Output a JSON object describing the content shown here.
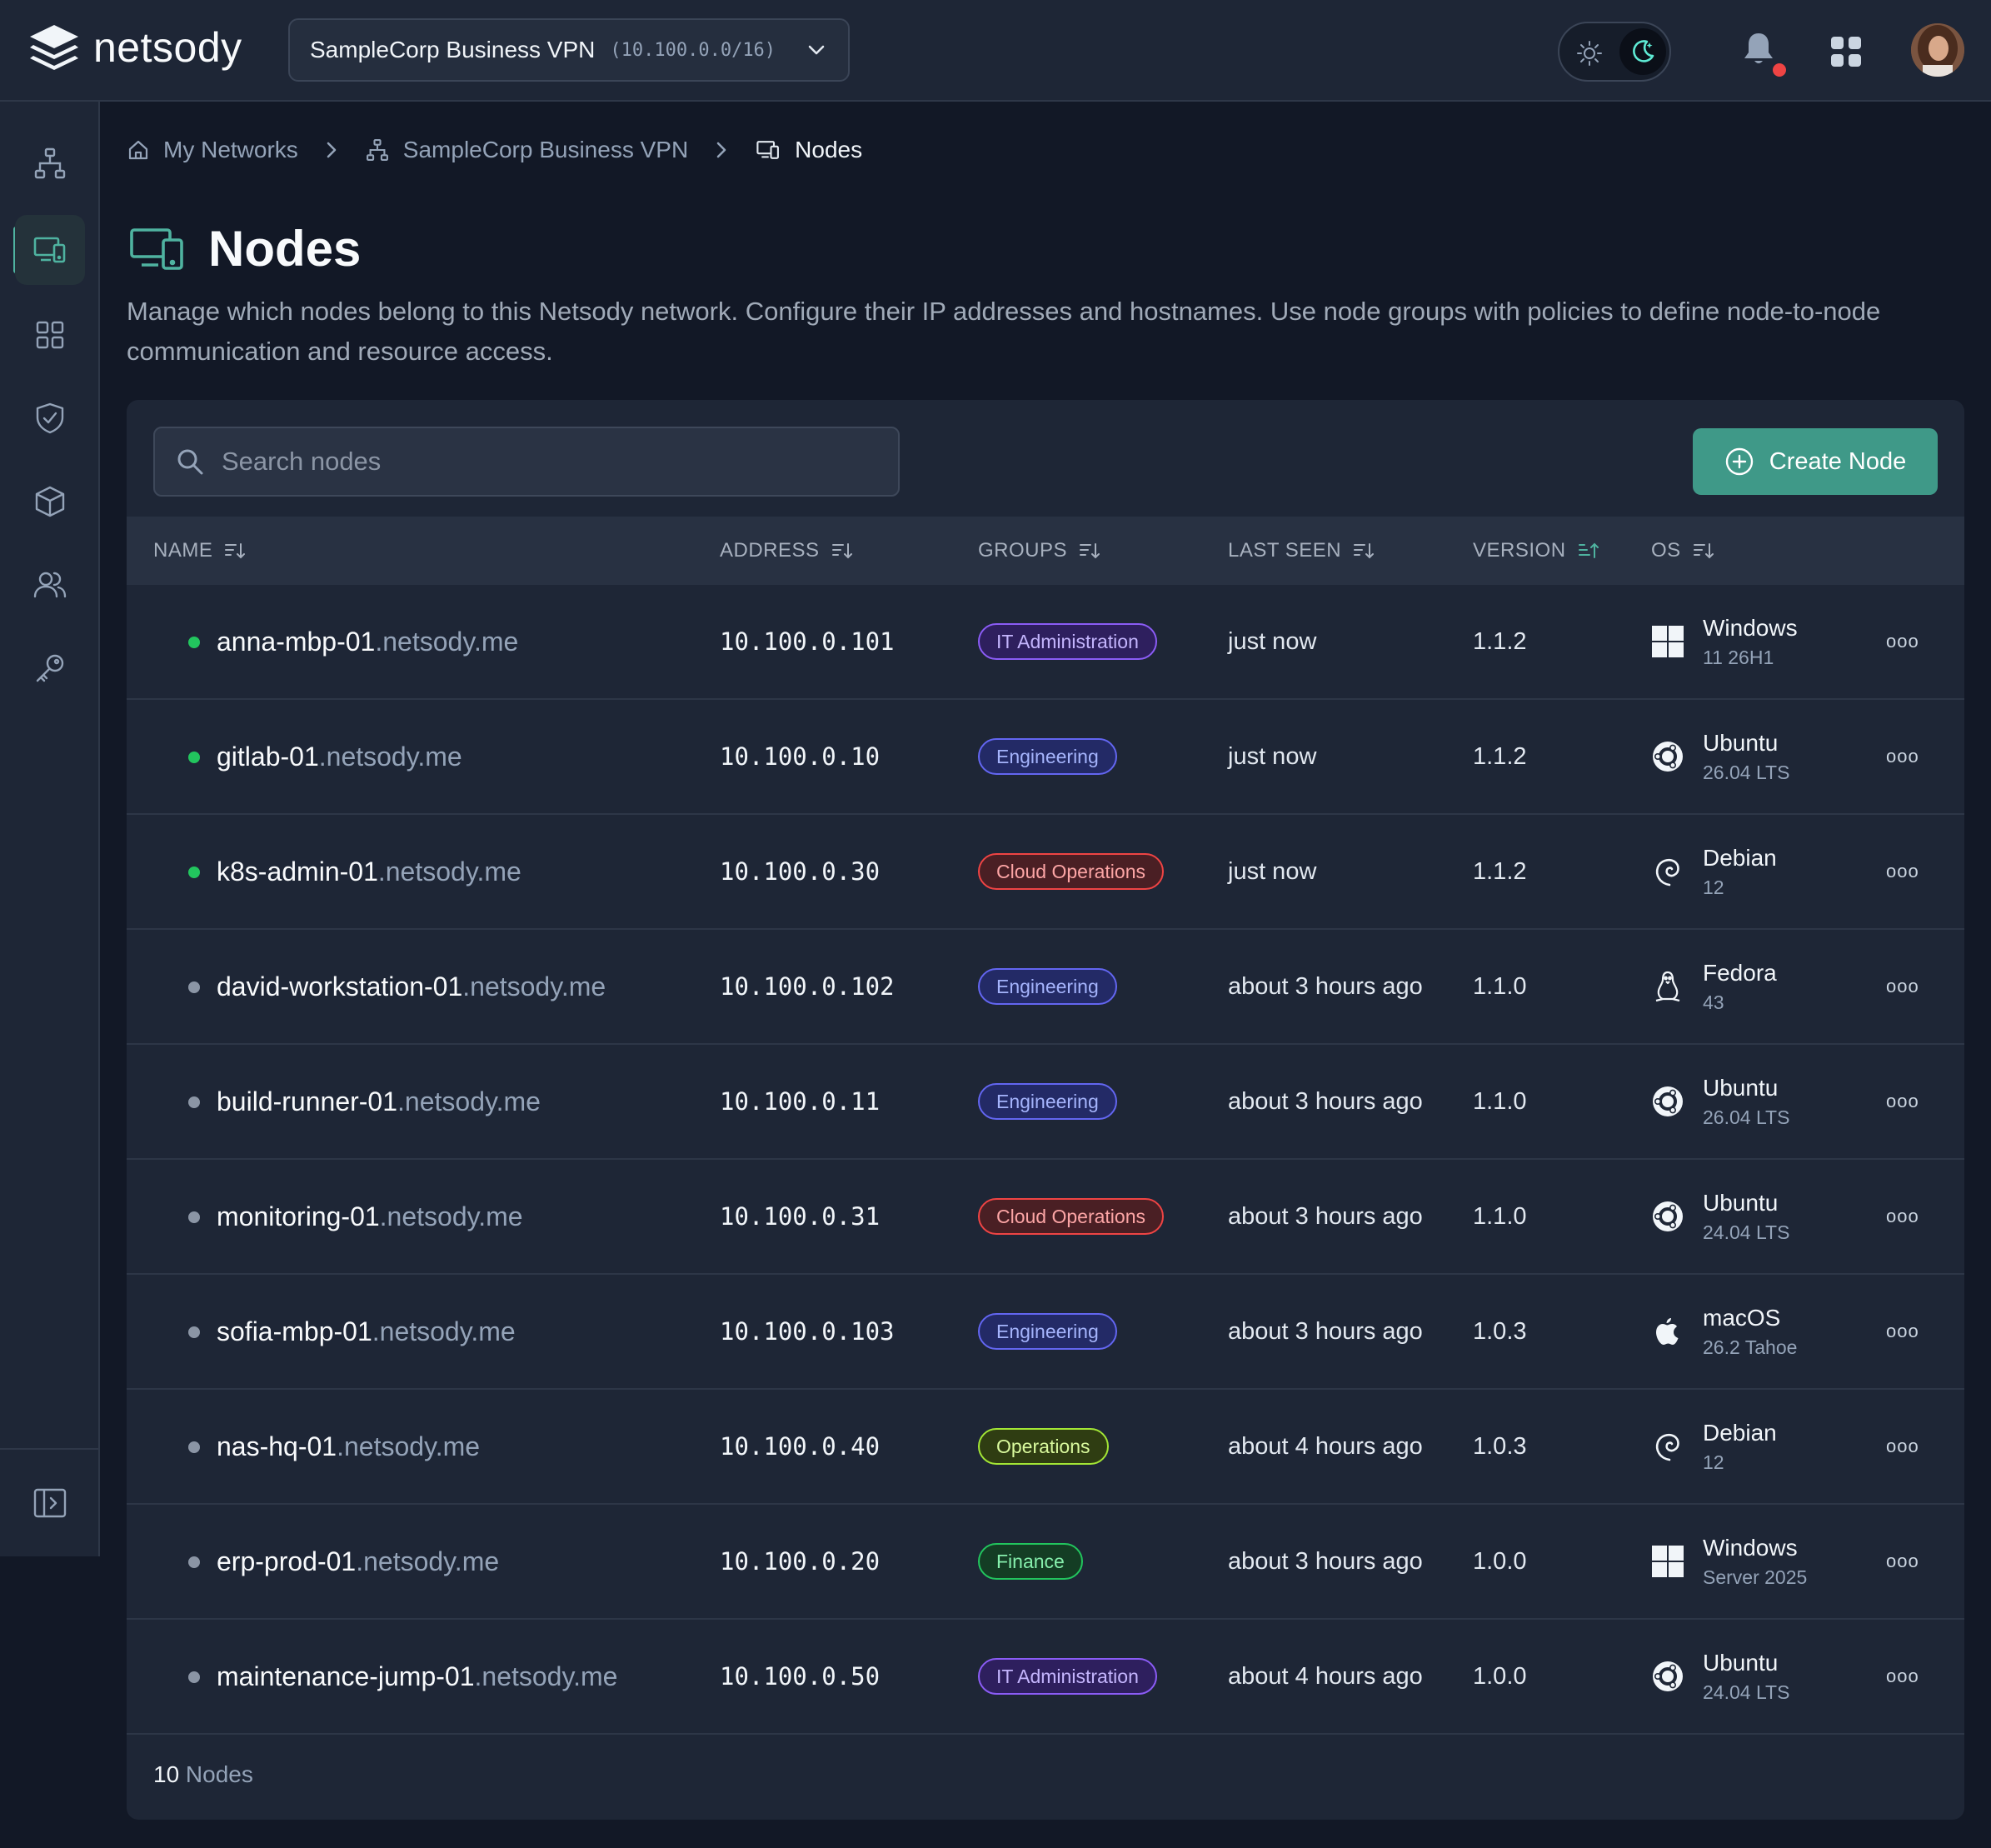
{
  "app": {
    "brand": "netsody"
  },
  "network_selector": {
    "name": "SampleCorp Business VPN",
    "cidr": "(10.100.0.0/16)"
  },
  "breadcrumb": {
    "home": "My Networks",
    "network": "SampleCorp Business VPN",
    "current": "Nodes"
  },
  "page": {
    "title": "Nodes",
    "description": "Manage which nodes belong to this Netsody network. Configure their IP addresses and hostnames. Use node groups with policies to define node-to-node communication and resource access."
  },
  "toolbar": {
    "search_placeholder": "Search nodes",
    "create_label": "Create Node"
  },
  "columns": {
    "name": "NAME",
    "address": "ADDRESS",
    "groups": "GROUPS",
    "last_seen": "LAST SEEN",
    "version": "VERSION",
    "os": "OS"
  },
  "colors": {
    "accent": "#3f9988",
    "online": "#22c55e",
    "offline": "#8b95a5"
  },
  "group_styles": {
    "IT Administration": {
      "color": "#c4b5fd",
      "border": "#8b5cf6",
      "bg": "#2e1f5e"
    },
    "Engineering": {
      "color": "#a5b4fc",
      "border": "#6366f1",
      "bg": "#232a66"
    },
    "Cloud Operations": {
      "color": "#fca5a5",
      "border": "#ef4444",
      "bg": "#4a1f24"
    },
    "Operations": {
      "color": "#d9f99d",
      "border": "#a3e635",
      "bg": "#2f3d12"
    },
    "Finance": {
      "color": "#86efac",
      "border": "#22c55e",
      "bg": "#143d24"
    }
  },
  "nodes": [
    {
      "host": "anna-mbp-01",
      "domain": ".netsody.me",
      "online": true,
      "address": "10.100.0.101",
      "group": "IT Administration",
      "last_seen": "just now",
      "version": "1.1.2",
      "os_icon": "windows-icon",
      "os_name": "Windows",
      "os_version": "11 26H1"
    },
    {
      "host": "gitlab-01",
      "domain": ".netsody.me",
      "online": true,
      "address": "10.100.0.10",
      "group": "Engineering",
      "last_seen": "just now",
      "version": "1.1.2",
      "os_icon": "ubuntu-icon",
      "os_name": "Ubuntu",
      "os_version": "26.04 LTS"
    },
    {
      "host": "k8s-admin-01",
      "domain": ".netsody.me",
      "online": true,
      "address": "10.100.0.30",
      "group": "Cloud Operations",
      "last_seen": "just now",
      "version": "1.1.2",
      "os_icon": "debian-icon",
      "os_name": "Debian",
      "os_version": "12"
    },
    {
      "host": "david-workstation-01",
      "domain": ".netsody.me",
      "online": false,
      "address": "10.100.0.102",
      "group": "Engineering",
      "last_seen": "about 3 hours ago",
      "version": "1.1.0",
      "os_icon": "linux-icon",
      "os_name": "Fedora",
      "os_version": "43"
    },
    {
      "host": "build-runner-01",
      "domain": ".netsody.me",
      "online": false,
      "address": "10.100.0.11",
      "group": "Engineering",
      "last_seen": "about 3 hours ago",
      "version": "1.1.0",
      "os_icon": "ubuntu-icon",
      "os_name": "Ubuntu",
      "os_version": "26.04 LTS"
    },
    {
      "host": "monitoring-01",
      "domain": ".netsody.me",
      "online": false,
      "address": "10.100.0.31",
      "group": "Cloud Operations",
      "last_seen": "about 3 hours ago",
      "version": "1.1.0",
      "os_icon": "ubuntu-icon",
      "os_name": "Ubuntu",
      "os_version": "24.04 LTS"
    },
    {
      "host": "sofia-mbp-01",
      "domain": ".netsody.me",
      "online": false,
      "address": "10.100.0.103",
      "group": "Engineering",
      "last_seen": "about 3 hours ago",
      "version": "1.0.3",
      "os_icon": "apple-icon",
      "os_name": "macOS",
      "os_version": "26.2 Tahoe"
    },
    {
      "host": "nas-hq-01",
      "domain": ".netsody.me",
      "online": false,
      "address": "10.100.0.40",
      "group": "Operations",
      "last_seen": "about 4 hours ago",
      "version": "1.0.3",
      "os_icon": "debian-icon",
      "os_name": "Debian",
      "os_version": "12"
    },
    {
      "host": "erp-prod-01",
      "domain": ".netsody.me",
      "online": false,
      "address": "10.100.0.20",
      "group": "Finance",
      "last_seen": "about 3 hours ago",
      "version": "1.0.0",
      "os_icon": "windows-icon",
      "os_name": "Windows",
      "os_version": "Server 2025"
    },
    {
      "host": "maintenance-jump-01",
      "domain": ".netsody.me",
      "online": false,
      "address": "10.100.0.50",
      "group": "IT Administration",
      "last_seen": "about 4 hours ago",
      "version": "1.0.0",
      "os_icon": "ubuntu-icon",
      "os_name": "Ubuntu",
      "os_version": "24.04 LTS"
    }
  ],
  "more_label": "ooo",
  "footer": {
    "count": "10",
    "label": " Nodes"
  }
}
